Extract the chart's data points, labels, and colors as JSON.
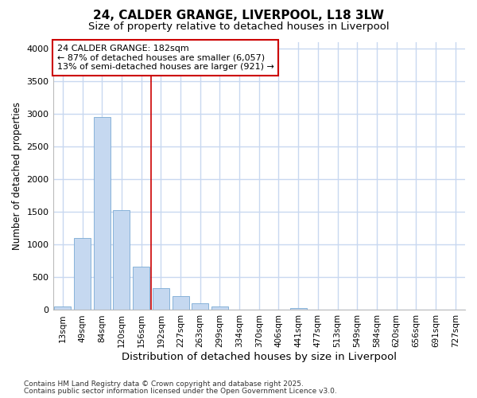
{
  "title1": "24, CALDER GRANGE, LIVERPOOL, L18 3LW",
  "title2": "Size of property relative to detached houses in Liverpool",
  "xlabel": "Distribution of detached houses by size in Liverpool",
  "ylabel": "Number of detached properties",
  "categories": [
    "13sqm",
    "49sqm",
    "84sqm",
    "120sqm",
    "156sqm",
    "192sqm",
    "227sqm",
    "263sqm",
    "299sqm",
    "334sqm",
    "370sqm",
    "406sqm",
    "441sqm",
    "477sqm",
    "513sqm",
    "549sqm",
    "584sqm",
    "620sqm",
    "656sqm",
    "691sqm",
    "727sqm"
  ],
  "values": [
    55,
    1100,
    2950,
    1530,
    660,
    330,
    210,
    100,
    60,
    0,
    0,
    0,
    30,
    0,
    0,
    0,
    0,
    0,
    0,
    0,
    0
  ],
  "bar_color": "#c5d8f0",
  "bar_edge_color": "#7aaad4",
  "vline_x_index": 5,
  "vline_color": "#cc0000",
  "annotation_text": "24 CALDER GRANGE: 182sqm\n← 87% of detached houses are smaller (6,057)\n13% of semi-detached houses are larger (921) →",
  "annotation_box_facecolor": "#ffffff",
  "annotation_box_edgecolor": "#cc0000",
  "fig_background_color": "#ffffff",
  "plot_background_color": "#ffffff",
  "grid_color": "#c8d8f0",
  "ylim": [
    0,
    4100
  ],
  "yticks": [
    0,
    500,
    1000,
    1500,
    2000,
    2500,
    3000,
    3500,
    4000
  ],
  "footer1": "Contains HM Land Registry data © Crown copyright and database right 2025.",
  "footer2": "Contains public sector information licensed under the Open Government Licence v3.0.",
  "title_fontsize": 11,
  "subtitle_fontsize": 9.5,
  "ylabel_fontsize": 8.5,
  "xlabel_fontsize": 9.5
}
